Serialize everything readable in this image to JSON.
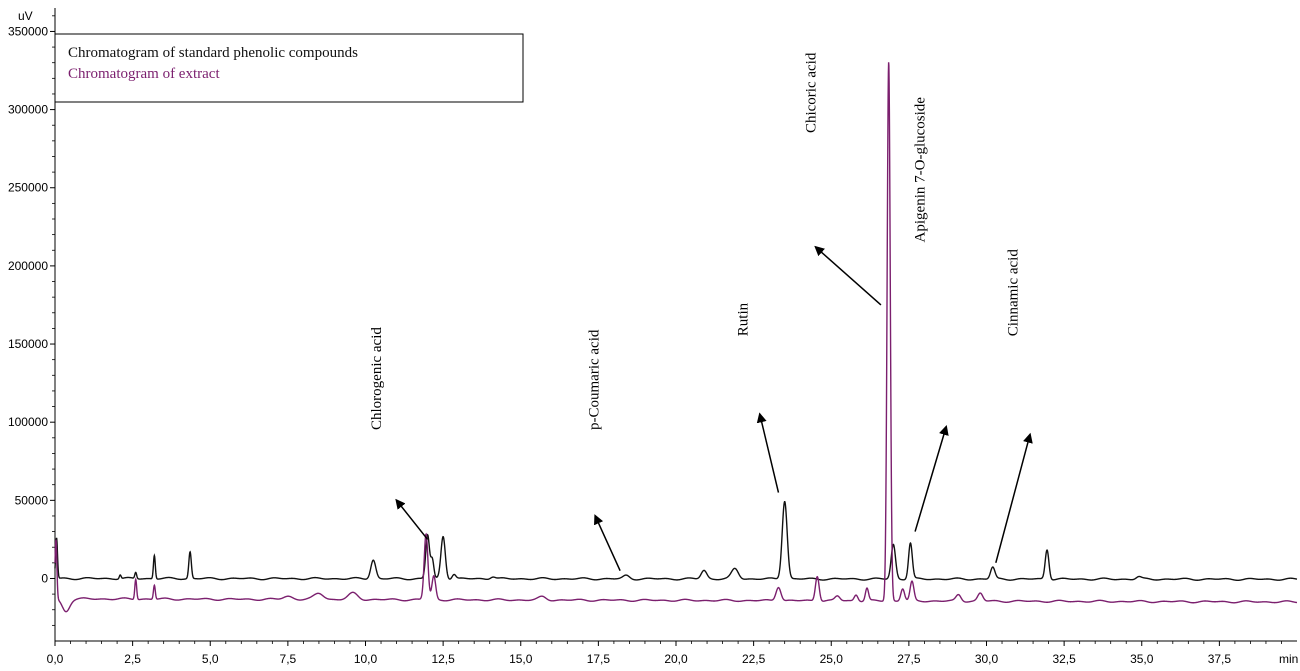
{
  "chart_data": {
    "type": "line",
    "title": "",
    "ylabel": "uV",
    "xlabel": "min",
    "xlim": [
      0,
      40
    ],
    "ylim": [
      -40000,
      365000
    ],
    "grid": false,
    "legend_position": "top-left",
    "x_ticks": [
      0,
      2.5,
      5,
      7.5,
      10,
      12.5,
      15,
      17.5,
      20,
      22.5,
      25,
      27.5,
      30,
      32.5,
      35,
      37.5
    ],
    "x_tick_labels": [
      "0,0",
      "2,5",
      "5,0",
      "7,5",
      "10,0",
      "12,5",
      "15,0",
      "17,5",
      "20,0",
      "22,5",
      "25,0",
      "27,5",
      "30,0",
      "32,5",
      "35,0",
      "37,5"
    ],
    "y_ticks": [
      0,
      50000,
      100000,
      150000,
      200000,
      250000,
      300000,
      350000
    ],
    "y_tick_labels": [
      "0",
      "50000",
      "100000",
      "150000",
      "200000",
      "250000",
      "300000",
      "350000"
    ],
    "series": [
      {
        "name": "Chromatogram of standard phenolic compounds",
        "color": "#111111",
        "baseline": [
          [
            0,
            0
          ],
          [
            40,
            -500
          ]
        ],
        "peaks": [
          {
            "x": 0.05,
            "h": 26000,
            "w": 0.03
          },
          {
            "x": 2.1,
            "h": 2500,
            "w": 0.03
          },
          {
            "x": 2.6,
            "h": 4000,
            "w": 0.03
          },
          {
            "x": 3.2,
            "h": 15000,
            "w": 0.03
          },
          {
            "x": 4.35,
            "h": 17000,
            "w": 0.04
          },
          {
            "x": 10.25,
            "h": 12000,
            "w": 0.08
          },
          {
            "x": 12.0,
            "h": 28000,
            "w": 0.06
          },
          {
            "x": 12.15,
            "h": 12000,
            "w": 0.05
          },
          {
            "x": 12.5,
            "h": 27000,
            "w": 0.07
          },
          {
            "x": 12.85,
            "h": 3000,
            "w": 0.06
          },
          {
            "x": 14.1,
            "h": 1500,
            "w": 0.08
          },
          {
            "x": 18.4,
            "h": 2000,
            "w": 0.1
          },
          {
            "x": 20.9,
            "h": 5500,
            "w": 0.09
          },
          {
            "x": 21.9,
            "h": 6500,
            "w": 0.11
          },
          {
            "x": 23.5,
            "h": 50000,
            "w": 0.08
          },
          {
            "x": 27.0,
            "h": 22000,
            "w": 0.07
          },
          {
            "x": 27.55,
            "h": 23000,
            "w": 0.06
          },
          {
            "x": 30.2,
            "h": 7500,
            "w": 0.07
          },
          {
            "x": 31.95,
            "h": 19000,
            "w": 0.06
          },
          {
            "x": 34.9,
            "h": 1500,
            "w": 0.08
          }
        ]
      },
      {
        "name": "Chromatogram of extract",
        "color": "#7b1f6e",
        "baseline": [
          [
            0,
            -13000
          ],
          [
            40,
            -15000
          ]
        ],
        "peaks": [
          {
            "x": 0.03,
            "h": 38000,
            "w": 0.03
          },
          {
            "x": 0.35,
            "h": -8000,
            "w": 0.12
          },
          {
            "x": 2.6,
            "h": 13000,
            "w": 0.03
          },
          {
            "x": 3.2,
            "h": 9000,
            "w": 0.03
          },
          {
            "x": 7.5,
            "h": 2000,
            "w": 0.15
          },
          {
            "x": 8.5,
            "h": 4000,
            "w": 0.15
          },
          {
            "x": 9.6,
            "h": 4000,
            "w": 0.15
          },
          {
            "x": 11.95,
            "h": 42000,
            "w": 0.06
          },
          {
            "x": 12.2,
            "h": 15000,
            "w": 0.06
          },
          {
            "x": 15.7,
            "h": 2000,
            "w": 0.12
          },
          {
            "x": 23.3,
            "h": 9000,
            "w": 0.08
          },
          {
            "x": 24.55,
            "h": 16000,
            "w": 0.06
          },
          {
            "x": 25.2,
            "h": 3000,
            "w": 0.08
          },
          {
            "x": 25.8,
            "h": 4000,
            "w": 0.06
          },
          {
            "x": 26.15,
            "h": 8000,
            "w": 0.05
          },
          {
            "x": 26.85,
            "h": 345000,
            "w": 0.05
          },
          {
            "x": 27.3,
            "h": 8000,
            "w": 0.06
          },
          {
            "x": 27.6,
            "h": 12000,
            "w": 0.06
          },
          {
            "x": 29.1,
            "h": 4000,
            "w": 0.08
          },
          {
            "x": 29.8,
            "h": 5000,
            "w": 0.08
          }
        ]
      }
    ],
    "annotations": [
      {
        "text": "Chlorogenic acid",
        "label_x": 10.5,
        "label_y": 95000,
        "arrow_from": [
          12.0,
          25000
        ],
        "arrow_to": [
          11.0,
          50000
        ]
      },
      {
        "text": "p-Coumaric acid",
        "label_x": 17.5,
        "label_y": 95000,
        "arrow_from": [
          18.2,
          5000
        ],
        "arrow_to": [
          17.4,
          40000
        ]
      },
      {
        "text": "Rutin",
        "label_x": 22.3,
        "label_y": 155000,
        "arrow_from": [
          23.3,
          55000
        ],
        "arrow_to": [
          22.7,
          105000
        ]
      },
      {
        "text": "Chicoric acid",
        "label_x": 24.5,
        "label_y": 285000,
        "arrow_from": [
          26.6,
          175000
        ],
        "arrow_to": [
          24.5,
          212000
        ]
      },
      {
        "text": "Apigenin 7-O-glucoside",
        "label_x": 28.0,
        "label_y": 215000,
        "arrow_from": [
          27.7,
          30000
        ],
        "arrow_to": [
          28.7,
          97000
        ]
      },
      {
        "text": "Cinnamic acid",
        "label_x": 31.0,
        "label_y": 155000,
        "arrow_from": [
          30.3,
          10000
        ],
        "arrow_to": [
          31.4,
          92000
        ]
      }
    ]
  }
}
